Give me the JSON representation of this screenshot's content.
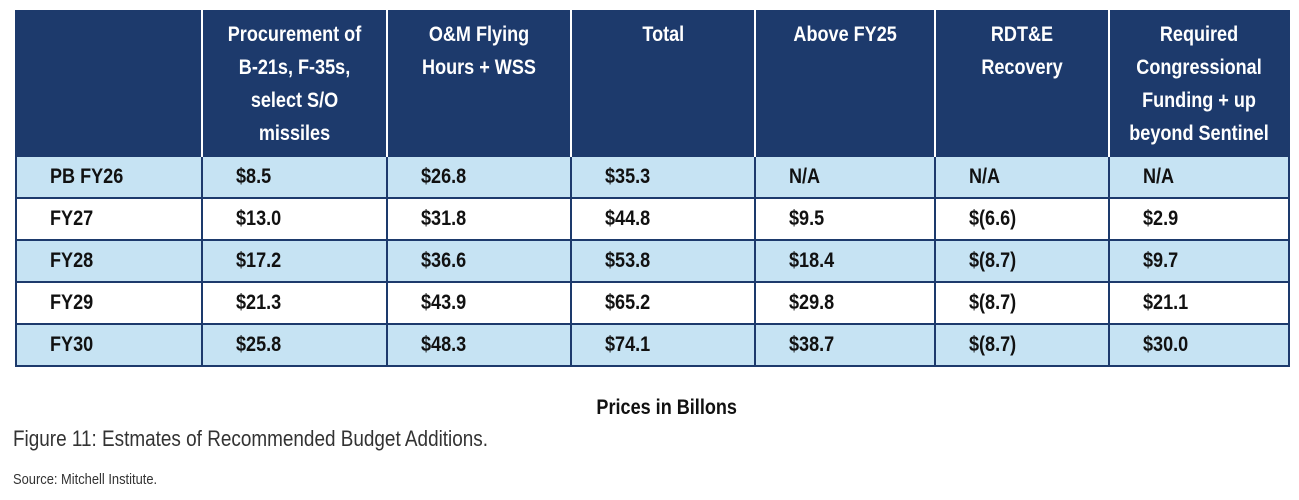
{
  "table": {
    "headers": [
      "",
      "Procurement of B-21s, F-35s, select S/O missiles",
      "O&M Flying Hours + WSS",
      "Total",
      "Above FY25",
      "RDT&E Recovery",
      "Required Congressional Funding + up beyond Sentinel"
    ],
    "rows": [
      [
        "PB FY26",
        "$8.5",
        "$26.8",
        "$35.3",
        "N/A",
        "N/A",
        "N/A"
      ],
      [
        "FY27",
        "$13.0",
        "$31.8",
        "$44.8",
        "$9.5",
        "$(6.6)",
        "$2.9"
      ],
      [
        "FY28",
        "$17.2",
        "$36.6",
        "$53.8",
        "$18.4",
        "$(8.7)",
        "$9.7"
      ],
      [
        "FY29",
        "$21.3",
        "$43.9",
        "$65.2",
        "$29.8",
        "$(8.7)",
        "$21.1"
      ],
      [
        "FY30",
        "$25.8",
        "$48.3",
        "$74.1",
        "$38.7",
        "$(8.7)",
        "$30.0"
      ]
    ]
  },
  "note": "Prices in Billons",
  "caption": "Figure 11: Estmates of Recommended Budget Additions.",
  "source": "Source: Mitchell Institute.",
  "colors": {
    "header_bg": "#1d3a6c",
    "row_light": "#c6e3f3",
    "row_white": "#ffffff"
  }
}
